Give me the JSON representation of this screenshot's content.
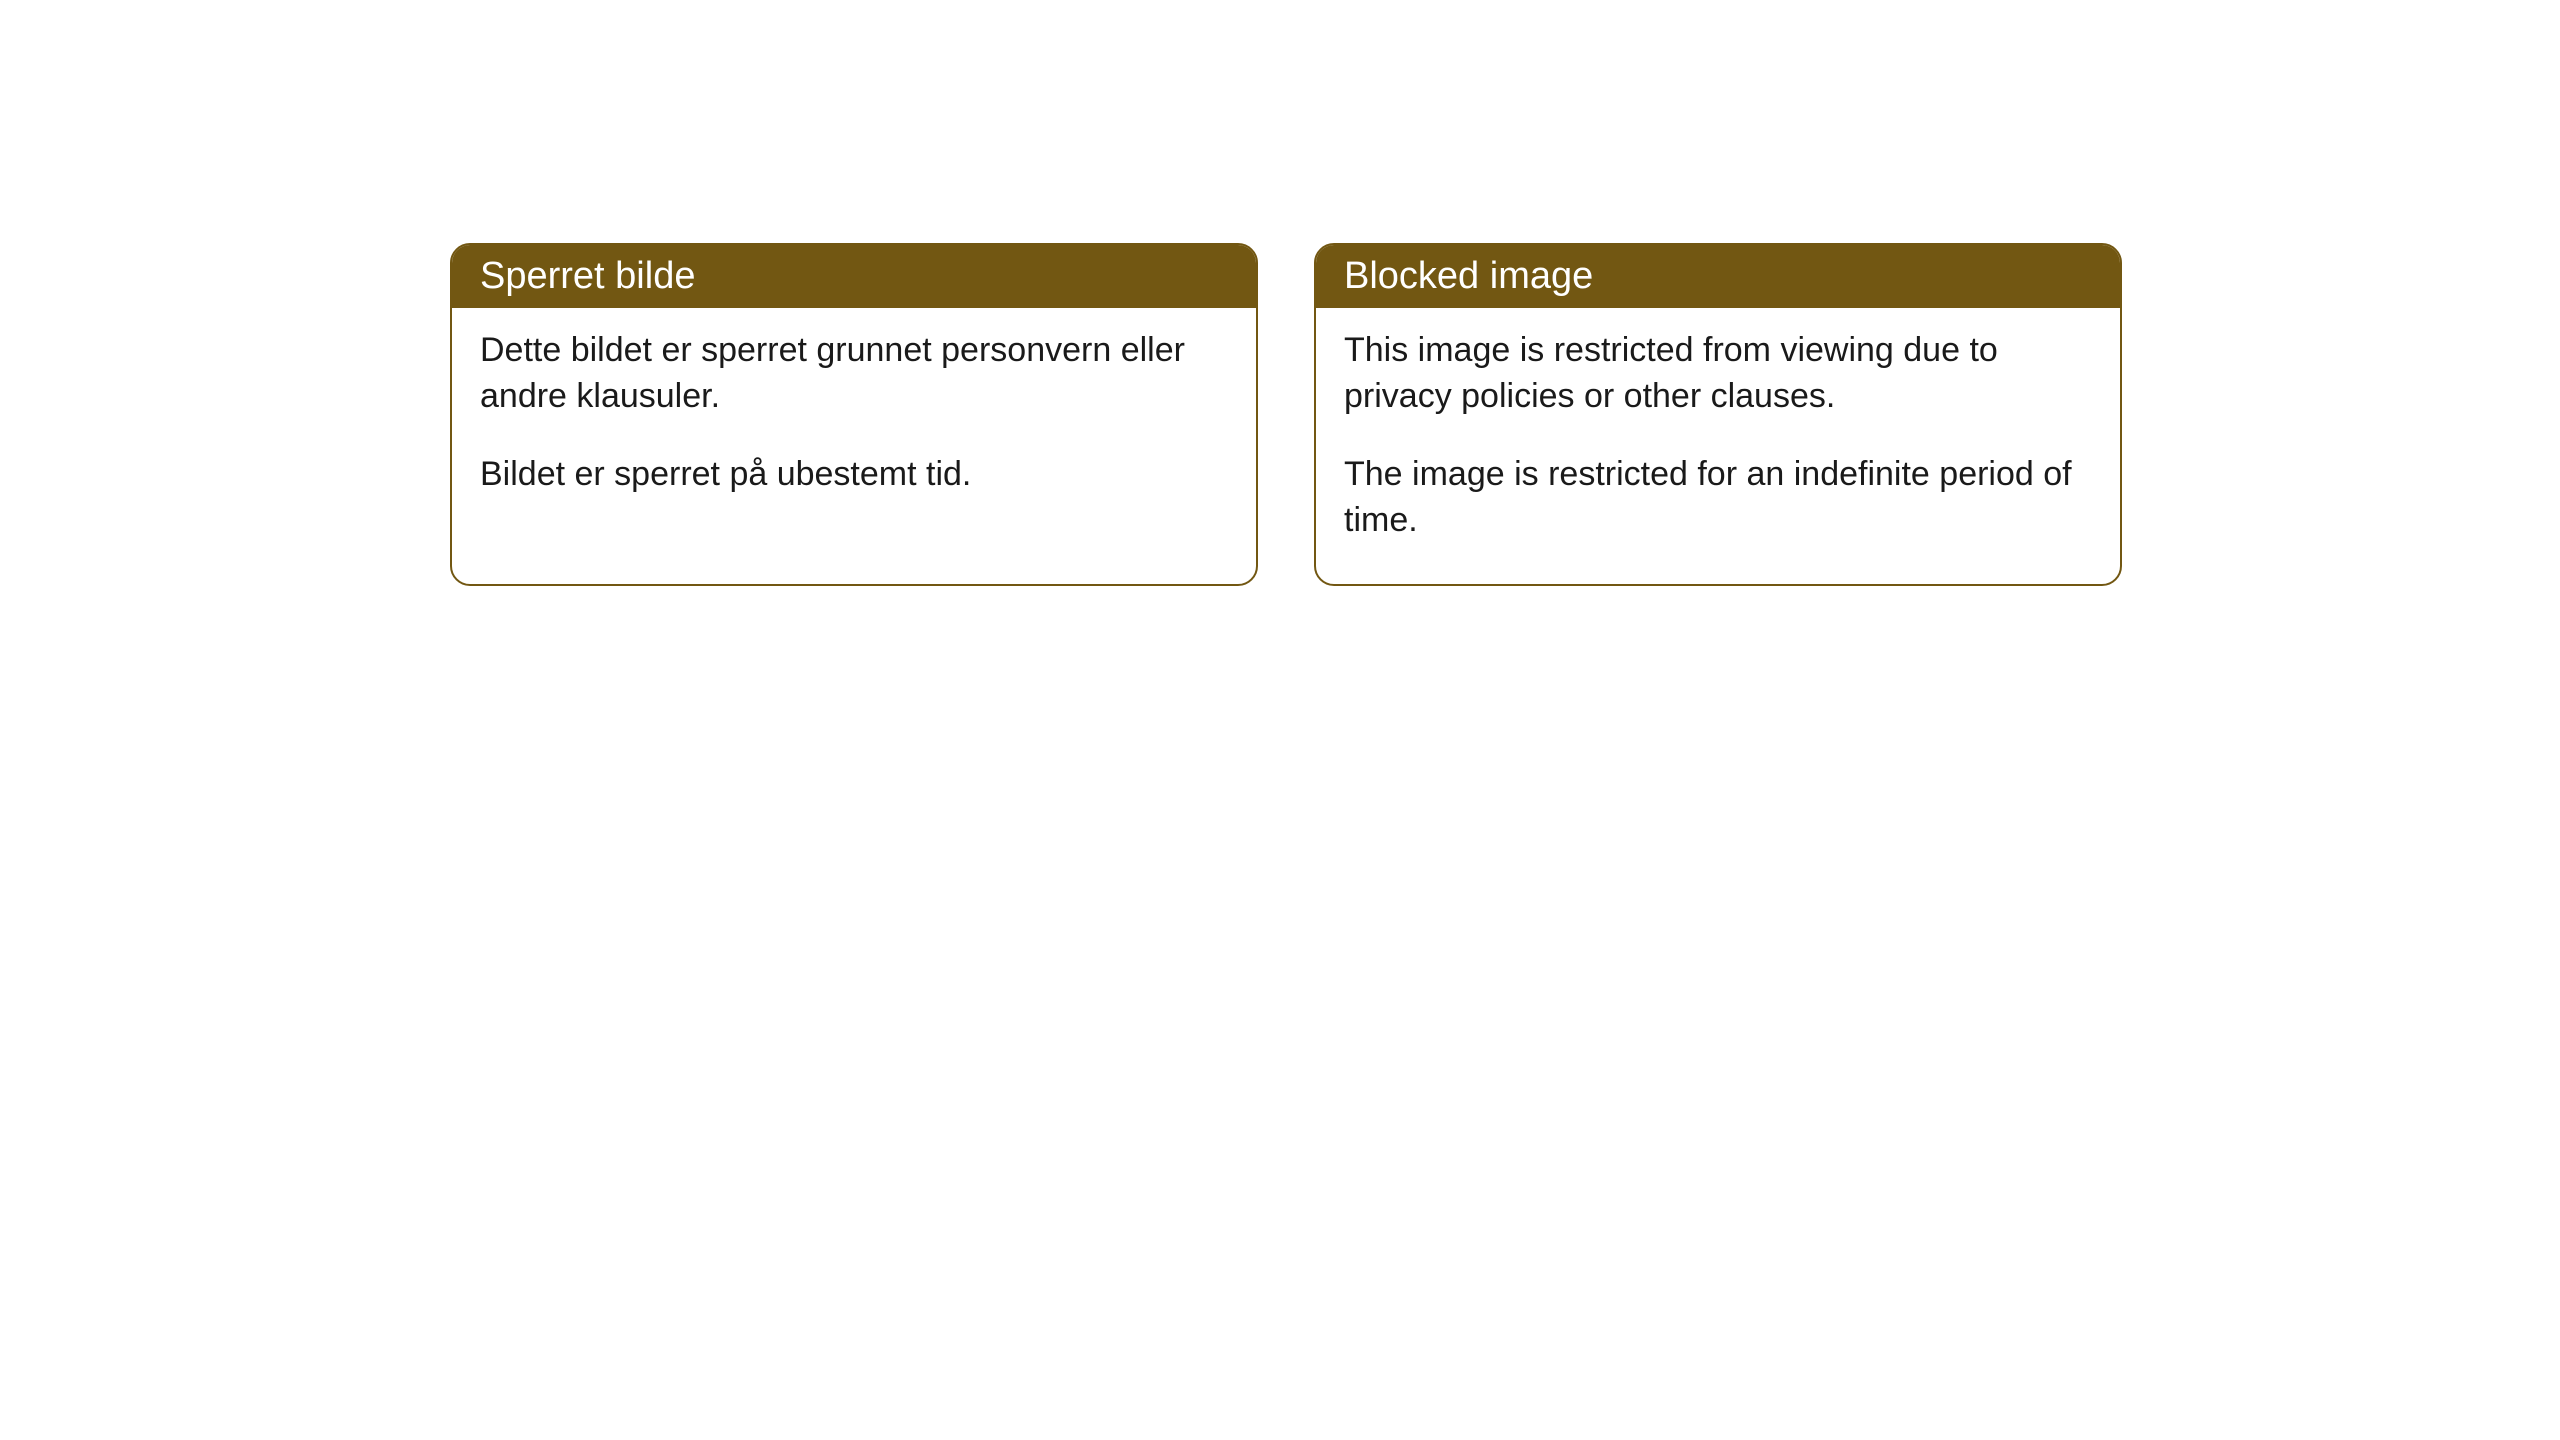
{
  "cards": [
    {
      "title": "Sperret bilde",
      "paragraph1": "Dette bildet er sperret grunnet personvern eller andre klausuler.",
      "paragraph2": "Bildet er sperret på ubestemt tid."
    },
    {
      "title": "Blocked image",
      "paragraph1": "This image is restricted from viewing due to privacy policies or other clauses.",
      "paragraph2": "The image is restricted for an indefinite period of time."
    }
  ],
  "styling": {
    "header_bg_color": "#725712",
    "header_text_color": "#ffffff",
    "border_color": "#725712",
    "card_bg_color": "#ffffff",
    "body_text_color": "#1a1a1a",
    "border_radius": "20px",
    "title_fontsize": 38,
    "body_fontsize": 34
  }
}
